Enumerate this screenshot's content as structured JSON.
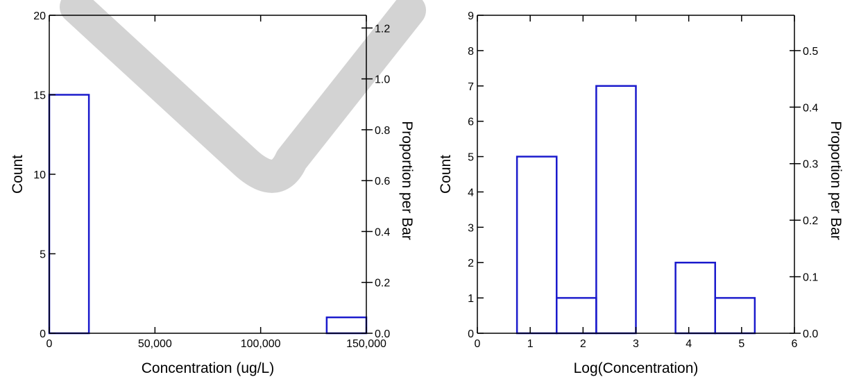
{
  "colors": {
    "bars": "#1a1acc",
    "watermark": "#d3d3d3",
    "axes": "#000000"
  },
  "chart_data": [
    {
      "type": "bar",
      "xlabel": "Concentration (ug/L)",
      "ylabel": "Count",
      "y2label": "Proportion per Bar",
      "xlim": [
        0,
        150000
      ],
      "ylim": [
        0,
        20
      ],
      "y2lim": [
        0,
        1.25
      ],
      "x_ticks": [
        0,
        50000,
        100000,
        150000
      ],
      "x_tick_labels": [
        "0",
        "50,000",
        "100,000",
        "150,000"
      ],
      "y_ticks": [
        0,
        5,
        10,
        15,
        20
      ],
      "y_tick_labels": [
        "0",
        "5",
        "10",
        "15",
        "20"
      ],
      "y2_ticks": [
        0,
        0.2,
        0.4,
        0.6,
        0.8,
        1.0,
        1.2
      ],
      "y2_tick_labels": [
        "0.0",
        "0.2",
        "0.4",
        "0.6",
        "0.8",
        "1.0",
        "1.2"
      ],
      "bins": [
        {
          "x0": 0,
          "x1": 18750,
          "count": 15
        },
        {
          "x0": 131250,
          "x1": 150000,
          "count": 1
        }
      ],
      "grid": false
    },
    {
      "type": "bar",
      "xlabel": "Log(Concentration)",
      "ylabel": "Count",
      "y2label": "Proportion per Bar",
      "xlim": [
        0,
        6
      ],
      "ylim": [
        0,
        9
      ],
      "y2lim": [
        0,
        0.5625
      ],
      "x_ticks": [
        0,
        1,
        2,
        3,
        4,
        5,
        6
      ],
      "x_tick_labels": [
        "0",
        "1",
        "2",
        "3",
        "4",
        "5",
        "6"
      ],
      "y_ticks": [
        0,
        1,
        2,
        3,
        4,
        5,
        6,
        7,
        8,
        9
      ],
      "y_tick_labels": [
        "0",
        "1",
        "2",
        "3",
        "4",
        "5",
        "6",
        "7",
        "8",
        "9"
      ],
      "y2_ticks": [
        0,
        0.1,
        0.2,
        0.3,
        0.4,
        0.5
      ],
      "y2_tick_labels": [
        "0.0",
        "0.1",
        "0.2",
        "0.3",
        "0.4",
        "0.5"
      ],
      "bins": [
        {
          "x0": 0.75,
          "x1": 1.5,
          "count": 5
        },
        {
          "x0": 1.5,
          "x1": 2.25,
          "count": 1
        },
        {
          "x0": 2.25,
          "x1": 3.0,
          "count": 7
        },
        {
          "x0": 3.75,
          "x1": 4.5,
          "count": 2
        },
        {
          "x0": 4.5,
          "x1": 5.25,
          "count": 1
        }
      ],
      "grid": false
    }
  ]
}
